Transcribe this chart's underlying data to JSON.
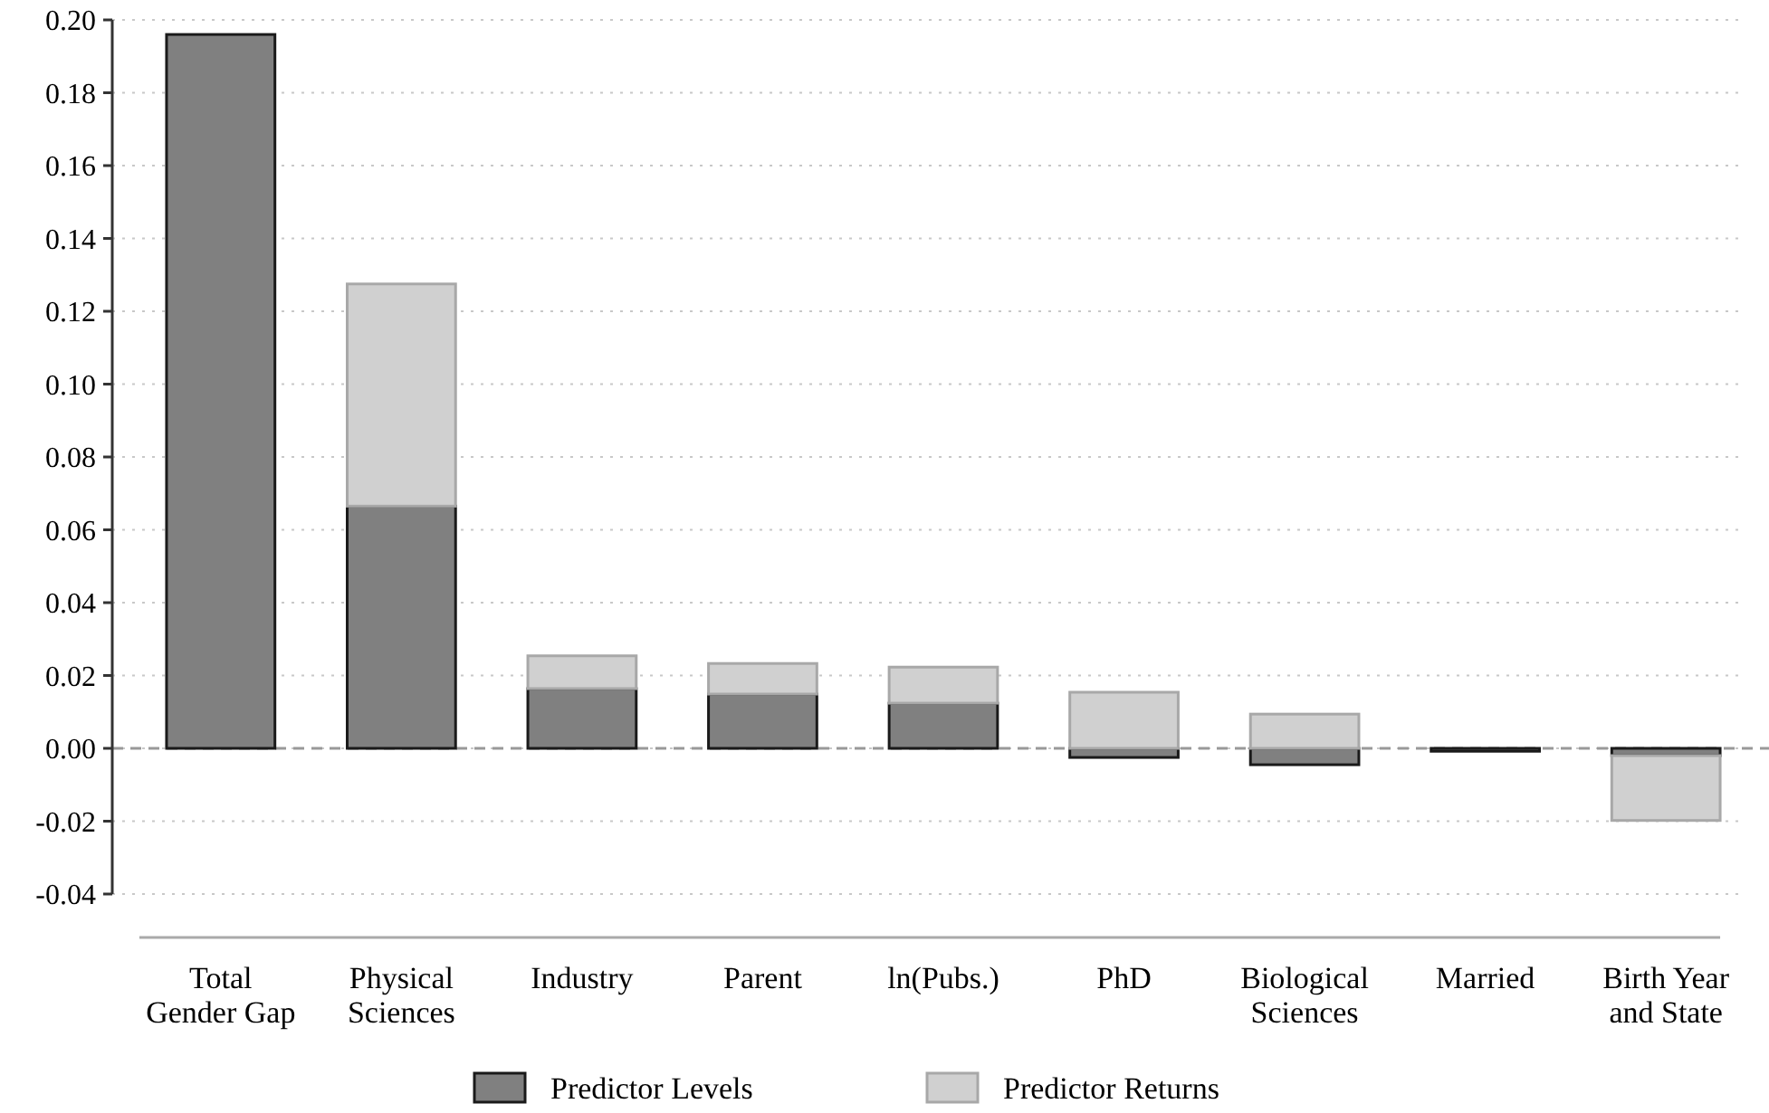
{
  "chart_data": {
    "type": "bar",
    "stacked": true,
    "categories": [
      "Total Gender Gap",
      "Physical Sciences",
      "Industry",
      "Parent",
      "ln(Pubs.)",
      "PhD",
      "Biological Sciences",
      "Married",
      "Birth Year and State"
    ],
    "series": [
      {
        "name": "Predictor Levels",
        "color": "#808080",
        "values": [
          0.196,
          0.0665,
          0.0164,
          0.0149,
          0.0124,
          -0.0025,
          -0.0045,
          -0.0008,
          -0.002
        ]
      },
      {
        "name": "Predictor Returns",
        "color": "#d0d0d0",
        "values": [
          null,
          0.061,
          0.009,
          0.0084,
          0.0099,
          0.0154,
          0.0094,
          null,
          -0.0178
        ]
      }
    ],
    "ylim": [
      -0.04,
      0.2
    ],
    "yticks": [
      {
        "value": -0.04,
        "label": "-0.04"
      },
      {
        "value": -0.02,
        "label": "-0.02"
      },
      {
        "value": 0,
        "label": "0.00"
      },
      {
        "value": 0.02,
        "label": "0.02"
      },
      {
        "value": 0.04,
        "label": "0.04"
      },
      {
        "value": 0.06,
        "label": "0.06"
      },
      {
        "value": 0.08,
        "label": "0.08"
      },
      {
        "value": 0.1,
        "label": "0.10"
      },
      {
        "value": 0.12,
        "label": "0.12"
      },
      {
        "value": 0.14,
        "label": "0.14"
      },
      {
        "value": 0.16,
        "label": "0.16"
      },
      {
        "value": 0.18,
        "label": "0.18"
      },
      {
        "value": 0.2,
        "label": "0.20"
      }
    ],
    "grid": "y",
    "legend": "bottom",
    "ref_lines": [
      {
        "axis": "y",
        "value": 0,
        "line_style": "dashed",
        "color": "#999999"
      }
    ]
  }
}
